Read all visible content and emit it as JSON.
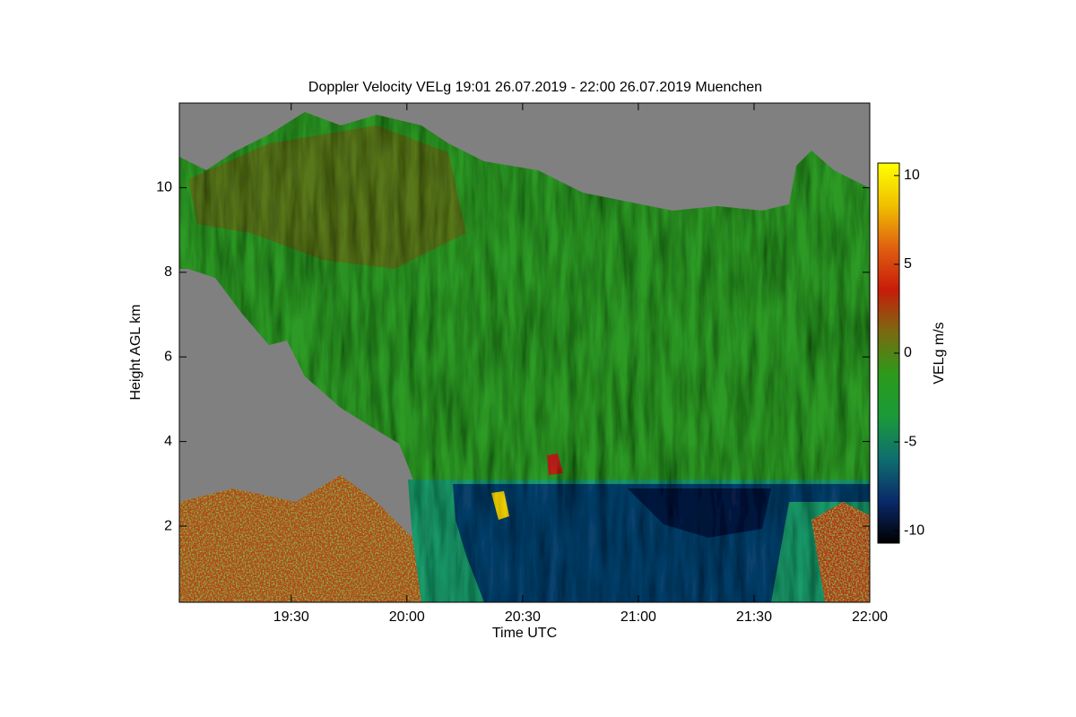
{
  "chart_data": {
    "type": "heatmap",
    "title": "Doppler Velocity VELg   19:01 26.07.2019 - 22:00 26.07.2019 Muenchen",
    "xlabel": "Time UTC",
    "ylabel": "Height AGL km",
    "xlim": [
      1141,
      1320
    ],
    "xticks": [
      {
        "value": 1170,
        "label": "19:30"
      },
      {
        "value": 1200,
        "label": "20:00"
      },
      {
        "value": 1230,
        "label": "20:30"
      },
      {
        "value": 1260,
        "label": "21:00"
      },
      {
        "value": 1290,
        "label": "21:30"
      },
      {
        "value": 1320,
        "label": "22:00"
      }
    ],
    "ylim": [
      0.2,
      12
    ],
    "yticks": [
      2,
      4,
      6,
      8,
      10
    ],
    "colorbar_label": "VELg m/s",
    "clim": [
      -10.7,
      10.7
    ],
    "cticks": [
      -10,
      -5,
      0,
      5,
      10
    ],
    "colormap": [
      "#000000",
      "#0a2a6a",
      "#0f6e6e",
      "#1a9a3a",
      "#2c9a1a",
      "#7a6a10",
      "#c81c0a",
      "#e06010",
      "#f0c000",
      "#ffff00"
    ]
  }
}
